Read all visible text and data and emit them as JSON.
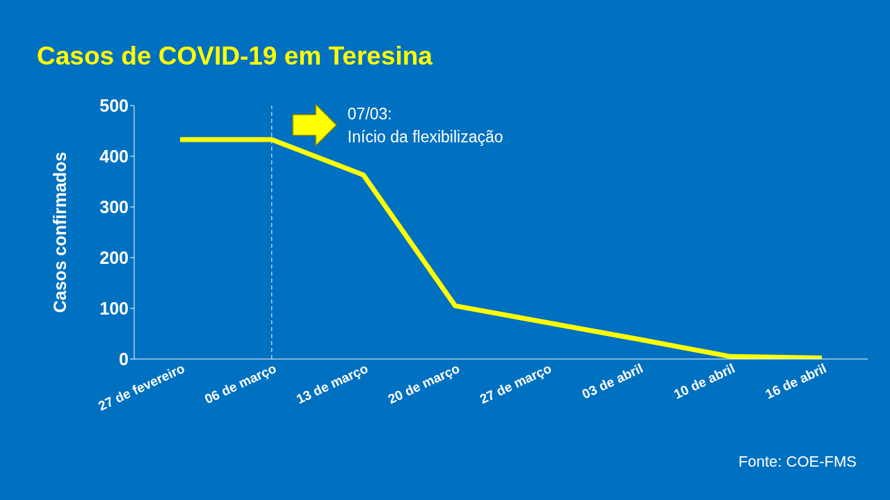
{
  "chart_data": {
    "type": "line",
    "title": "Casos de COVID-19 em Teresina",
    "ylabel": "Casos confirmados",
    "categories": [
      "27 de fevereiro",
      "06 de março",
      "13 de março",
      "20 de março",
      "27 de março",
      "03 de abril",
      "10 de abril",
      "16 de abril"
    ],
    "series": [
      {
        "color": "#ffff00",
        "values": [
          433,
          433,
          363,
          105,
          72,
          39,
          5,
          2
        ]
      }
    ],
    "ylim": [
      0,
      500
    ],
    "yticks": [
      0,
      100,
      200,
      300,
      400,
      500
    ],
    "grid": false,
    "legend": false,
    "marker": "none",
    "line_style": "solid",
    "ref_lines": [
      {
        "axis": "x",
        "value": "06 de março",
        "label": "07/03:\nInício da flexibilização",
        "color": "#ffffff",
        "line_style": "dashed"
      }
    ],
    "annotations": [
      "Fonte: COE-FMS"
    ]
  }
}
